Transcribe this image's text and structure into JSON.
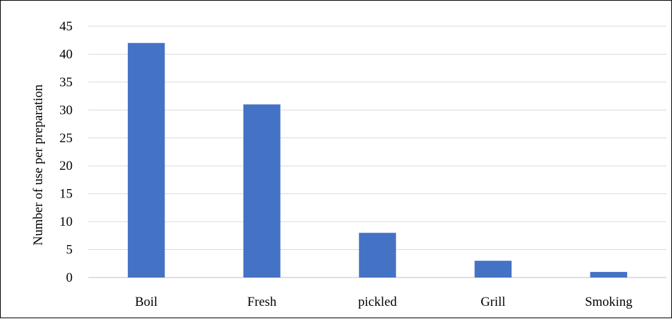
{
  "chart_data": {
    "type": "bar",
    "categories": [
      "Boil",
      "Fresh",
      "pickled",
      "Grill",
      "Smoking"
    ],
    "values": [
      42,
      31,
      8,
      3,
      1
    ],
    "ylabel": "Number of use per preparation",
    "xlabel": "",
    "ylim": [
      0,
      45
    ],
    "yticks": [
      0,
      5,
      10,
      15,
      20,
      25,
      30,
      35,
      40,
      45
    ],
    "grid": "horizontal",
    "legend": "none",
    "colors": {
      "bar": "#4472C4",
      "grid": "#D9D9D9",
      "axis": "#BFBFBF",
      "text": "#000000",
      "border": "#000000"
    }
  }
}
